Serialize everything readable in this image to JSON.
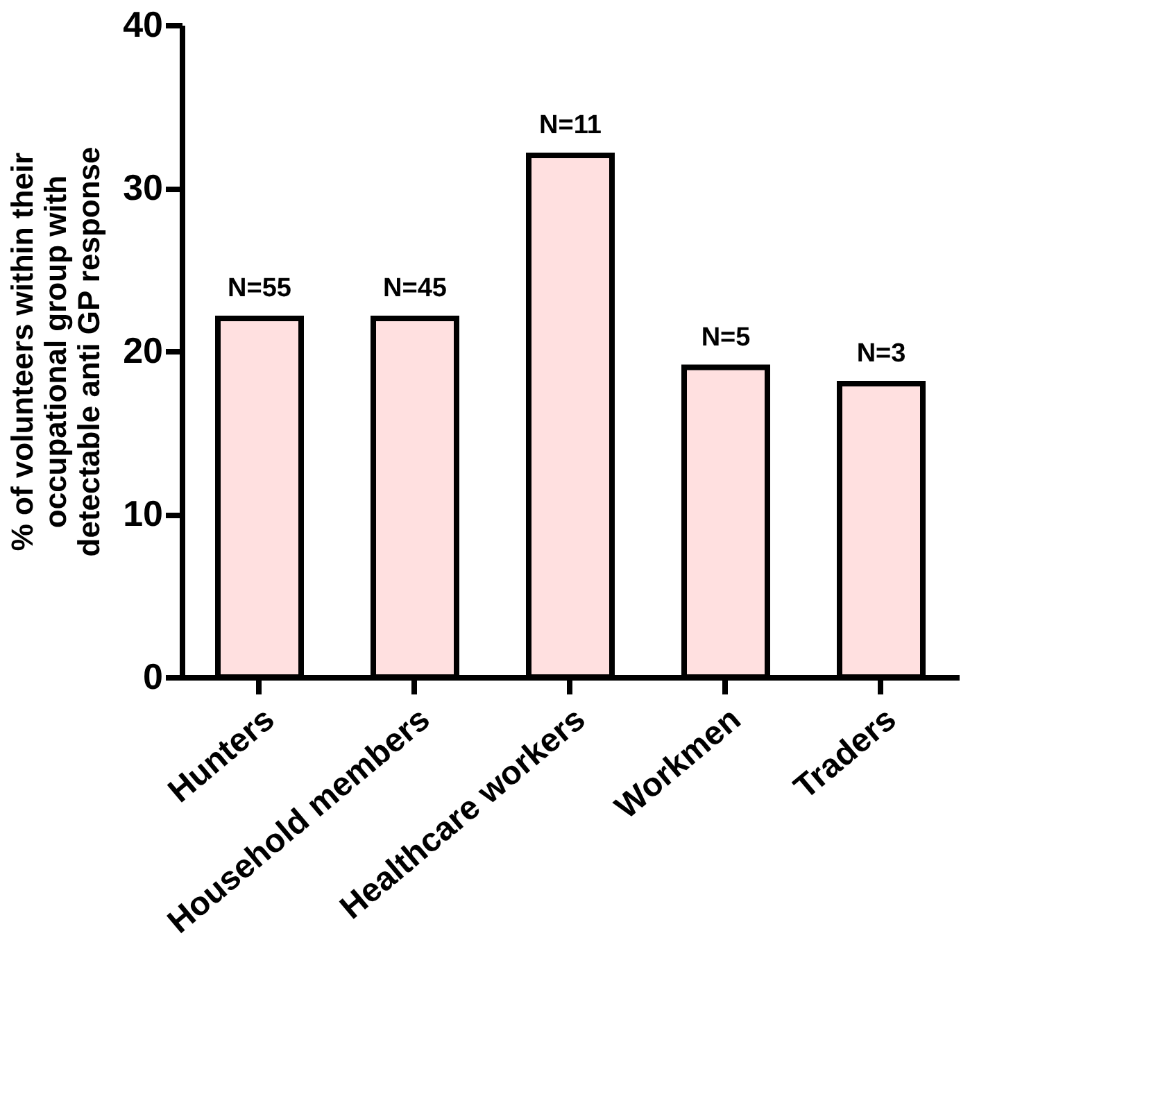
{
  "chart_data": {
    "type": "bar",
    "ylabel": "% of volunteers within their\noccupational group with\ndetectable anti GP response",
    "categories": [
      "Hunters",
      "Household members",
      "Healthcare workers",
      "Workmen",
      "Traders"
    ],
    "values": [
      22,
      22,
      32,
      19,
      18
    ],
    "annotations": [
      {
        "text": "N=55",
        "x": "Hunters",
        "y": 22
      },
      {
        "text": "N=45",
        "x": "Household members",
        "y": 22
      },
      {
        "text": "N=11",
        "x": "Healthcare workers",
        "y": 32
      },
      {
        "text": "N=5",
        "x": "Workmen",
        "y": 19
      },
      {
        "text": "N=3",
        "x": "Traders",
        "y": 18
      }
    ],
    "color": "#ffe0e0",
    "ylim": [
      0,
      40
    ],
    "yticks": [
      0,
      10,
      20,
      30,
      40
    ],
    "grid": false
  }
}
